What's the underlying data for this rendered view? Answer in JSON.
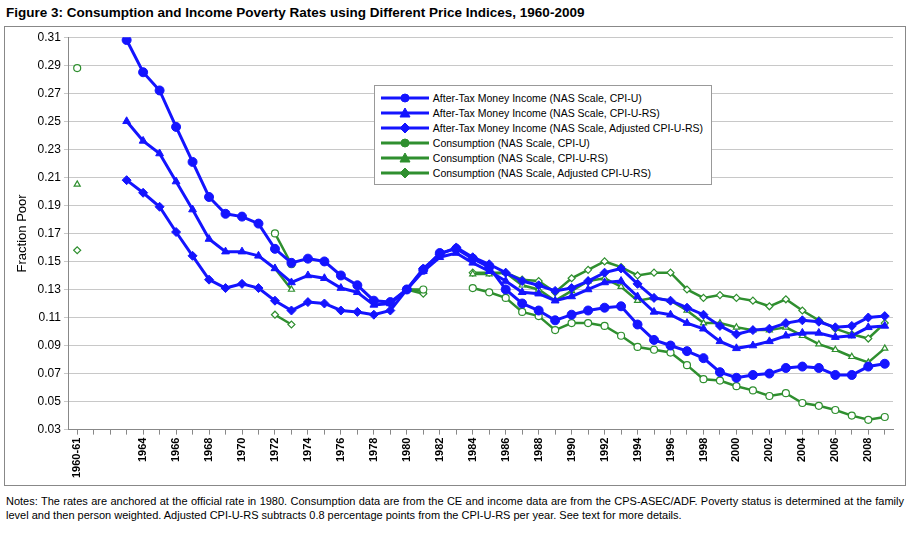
{
  "chart_data": {
    "type": "line",
    "title": "Figure 3: Consumption and Income Poverty Rates using Different Price Indices, 1960-2009",
    "y_label": "Fraction Poor",
    "notes": "Notes: The rates are anchored at the official rate in 1980. Consumption data are from the CE and income data are from the CPS-ASEC/ADF. Poverty status is determined at the family level and then person weighted. Adjusted CPI-U-RS subtracts 0.8 percentage points from the CPI-U-RS per year. See text for more details.",
    "categories": [
      "1960-61",
      null,
      null,
      null,
      "1964",
      null,
      "1966",
      null,
      "1968",
      null,
      "1970",
      null,
      "1972",
      null,
      "1974",
      null,
      "1976",
      null,
      "1978",
      null,
      "1980",
      null,
      "1982",
      null,
      "1984",
      null,
      "1986",
      null,
      "1988",
      null,
      "1990",
      null,
      "1992",
      null,
      "1994",
      null,
      "1996",
      null,
      "1998",
      null,
      "2000",
      null,
      "2002",
      null,
      "2004",
      null,
      "2006",
      null,
      "2008",
      null
    ],
    "series": [
      {
        "name": "After-Tax Money Income (NAS Scale, CPI-U)",
        "color": "#1414ff",
        "marker": "circle",
        "values": [
          null,
          null,
          null,
          0.308,
          0.285,
          0.272,
          0.246,
          0.221,
          0.196,
          0.184,
          0.182,
          0.177,
          0.159,
          0.149,
          0.152,
          0.15,
          0.14,
          0.133,
          0.122,
          0.121,
          0.13,
          0.144,
          0.156,
          0.159,
          0.152,
          0.146,
          0.13,
          0.12,
          0.115,
          0.108,
          0.112,
          0.115,
          0.117,
          0.118,
          0.105,
          0.094,
          0.09,
          0.086,
          0.081,
          0.071,
          0.067,
          0.069,
          0.07,
          0.074,
          0.075,
          0.074,
          0.069,
          0.069,
          0.075,
          0.077
        ]
      },
      {
        "name": "After-Tax Money Income (NAS Scale, CPI-U-RS)",
        "color": "#1414ff",
        "marker": "triangle",
        "values": [
          null,
          null,
          null,
          0.25,
          0.236,
          0.227,
          0.207,
          0.187,
          0.166,
          0.157,
          0.157,
          0.154,
          0.145,
          0.135,
          0.14,
          0.138,
          0.131,
          0.128,
          0.119,
          0.12,
          0.13,
          0.143,
          0.153,
          0.156,
          0.149,
          0.143,
          0.136,
          0.128,
          0.127,
          0.122,
          0.125,
          0.13,
          0.135,
          0.136,
          0.125,
          0.114,
          0.112,
          0.106,
          0.102,
          0.093,
          0.088,
          0.09,
          0.093,
          0.097,
          0.099,
          0.099,
          0.096,
          0.097,
          0.103,
          0.104
        ]
      },
      {
        "name": "After-Tax Money Income (NAS Scale, Adjusted CPI-U-RS)",
        "color": "#1414ff",
        "marker": "diamond",
        "values": [
          null,
          null,
          null,
          0.208,
          0.199,
          0.189,
          0.171,
          0.154,
          0.137,
          0.131,
          0.134,
          0.131,
          0.122,
          0.115,
          0.121,
          0.12,
          0.115,
          0.114,
          0.112,
          0.115,
          0.13,
          0.145,
          0.155,
          0.16,
          0.153,
          0.148,
          0.142,
          0.136,
          0.133,
          0.129,
          0.131,
          0.136,
          0.142,
          0.145,
          0.134,
          0.124,
          0.122,
          0.117,
          0.112,
          0.104,
          0.098,
          0.101,
          0.102,
          0.106,
          0.108,
          0.107,
          0.103,
          0.104,
          0.11,
          0.111
        ]
      },
      {
        "name": "Consumption (NAS Scale, CPI-U)",
        "color": "#2f8f2f",
        "marker": "circle",
        "values": [
          0.288,
          null,
          null,
          null,
          null,
          null,
          null,
          null,
          null,
          null,
          null,
          null,
          0.17,
          0.148,
          null,
          null,
          null,
          null,
          null,
          null,
          0.13,
          0.13,
          null,
          null,
          0.131,
          0.128,
          0.124,
          0.114,
          0.111,
          0.101,
          0.106,
          0.106,
          0.104,
          0.097,
          0.089,
          0.087,
          0.085,
          0.076,
          0.066,
          0.065,
          0.061,
          0.058,
          0.054,
          0.056,
          0.049,
          0.047,
          0.044,
          0.04,
          0.037,
          0.039
        ]
      },
      {
        "name": "Consumption (NAS Scale, CPI-U-RS)",
        "color": "#2f8f2f",
        "marker": "triangle",
        "values": [
          0.205,
          null,
          null,
          null,
          null,
          null,
          null,
          null,
          null,
          null,
          null,
          null,
          0.145,
          0.13,
          null,
          null,
          null,
          null,
          null,
          null,
          0.13,
          0.129,
          null,
          null,
          0.141,
          0.141,
          0.142,
          0.133,
          0.13,
          0.122,
          0.129,
          0.136,
          0.138,
          0.132,
          0.122,
          0.124,
          0.122,
          0.115,
          0.106,
          0.106,
          0.103,
          0.101,
          0.101,
          0.103,
          0.097,
          0.091,
          0.087,
          0.082,
          0.078,
          0.088
        ]
      },
      {
        "name": "Consumption (NAS Scale, Adjusted CPI-U-RS)",
        "color": "#2f8f2f",
        "marker": "diamond",
        "values": [
          0.158,
          null,
          null,
          null,
          null,
          null,
          null,
          null,
          null,
          null,
          null,
          null,
          0.112,
          0.105,
          null,
          null,
          null,
          null,
          null,
          null,
          0.13,
          0.127,
          null,
          null,
          0.142,
          0.142,
          0.142,
          0.137,
          0.136,
          0.128,
          0.138,
          0.144,
          0.15,
          0.146,
          0.14,
          0.142,
          0.142,
          0.13,
          0.124,
          0.126,
          0.124,
          0.122,
          0.118,
          0.123,
          0.115,
          0.108,
          0.102,
          0.098,
          0.095,
          0.106
        ]
      }
    ],
    "ylim": [
      0.03,
      0.31
    ],
    "yticks": [
      0.03,
      0.05,
      0.07,
      0.09,
      0.11,
      0.13,
      0.15,
      0.17,
      0.19,
      0.21,
      0.23,
      0.25,
      0.27,
      0.29,
      0.31
    ],
    "grid": true,
    "legend": "upper right"
  }
}
